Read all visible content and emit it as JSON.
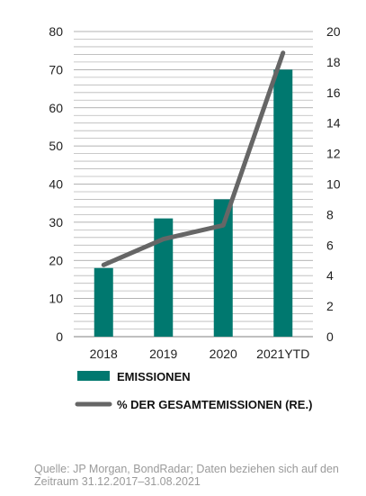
{
  "chart_data": {
    "type": "bar+line",
    "categories": [
      "2018",
      "2019",
      "2020",
      "2021YTD"
    ],
    "series": [
      {
        "name": "EMISSIONEN",
        "type": "bar",
        "axis": "left",
        "values": [
          18,
          31,
          36,
          70
        ],
        "color": "#00786f"
      },
      {
        "name": "% DER GESAMTEMISSIONEN (RE.)",
        "type": "line",
        "axis": "right",
        "values": [
          4.7,
          6.4,
          7.3,
          18.6
        ],
        "color": "#666666"
      }
    ],
    "y_left": {
      "min": 0,
      "max": 80,
      "step": 10,
      "ticks": [
        "0",
        "10",
        "20",
        "30",
        "40",
        "50",
        "60",
        "70",
        "80"
      ]
    },
    "y_right": {
      "min": 0,
      "max": 20,
      "step": 2,
      "ticks": [
        "0",
        "2",
        "4",
        "6",
        "8",
        "10",
        "12",
        "14",
        "16",
        "18",
        "20"
      ]
    },
    "grid": true,
    "legend_position": "bottom-left"
  },
  "source_text": "Quelle: JP Morgan, BondRadar; Daten beziehen sich auf den Zeitraum 31.12.2017–31.08.2021"
}
